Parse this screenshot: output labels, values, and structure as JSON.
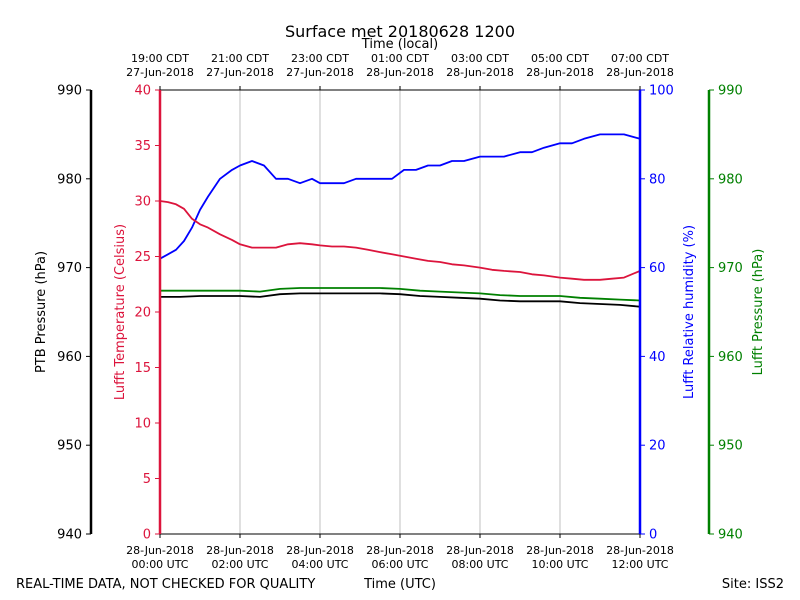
{
  "chart_data": {
    "type": "line",
    "title": "Surface met 20180628 1200",
    "top_axis_label": "Time (local)",
    "xlabel": "Time (UTC)",
    "footer_left": "REAL-TIME DATA, NOT CHECKED FOR QUALITY",
    "footer_right": "Site: ISS2",
    "x_range_hours": [
      0,
      12
    ],
    "x_ticks": [
      {
        "hour": 0,
        "utc_date": "28-Jun-2018",
        "utc_time": "00:00 UTC",
        "local_time": "19:00 CDT",
        "local_date": "27-Jun-2018"
      },
      {
        "hour": 2,
        "utc_date": "28-Jun-2018",
        "utc_time": "02:00 UTC",
        "local_time": "21:00 CDT",
        "local_date": "27-Jun-2018"
      },
      {
        "hour": 4,
        "utc_date": "28-Jun-2018",
        "utc_time": "04:00 UTC",
        "local_time": "23:00 CDT",
        "local_date": "27-Jun-2018"
      },
      {
        "hour": 6,
        "utc_date": "28-Jun-2018",
        "utc_time": "06:00 UTC",
        "local_time": "01:00 CDT",
        "local_date": "28-Jun-2018"
      },
      {
        "hour": 8,
        "utc_date": "28-Jun-2018",
        "utc_time": "08:00 UTC",
        "local_time": "03:00 CDT",
        "local_date": "28-Jun-2018"
      },
      {
        "hour": 10,
        "utc_date": "28-Jun-2018",
        "utc_time": "10:00 UTC",
        "local_time": "05:00 CDT",
        "local_date": "28-Jun-2018"
      },
      {
        "hour": 12,
        "utc_date": "28-Jun-2018",
        "utc_time": "12:00 UTC",
        "local_time": "07:00 CDT",
        "local_date": "28-Jun-2018"
      }
    ],
    "axes": [
      {
        "id": "ptb",
        "label": "PTB Pressure (hPa)",
        "color": "#000000",
        "ylim": [
          940,
          990
        ],
        "ticks": [
          "940",
          "950",
          "960",
          "970",
          "980",
          "990"
        ]
      },
      {
        "id": "temp",
        "label": "Lufft Temperature (Celsius)",
        "color": "#dc143c",
        "ylim": [
          0,
          40
        ],
        "ticks": [
          "0",
          "5",
          "10",
          "15",
          "20",
          "25",
          "30",
          "35",
          "40"
        ]
      },
      {
        "id": "rh",
        "label": "Lufft Relative humidity (%)",
        "color": "#0000ff",
        "ylim": [
          0,
          100
        ],
        "ticks": [
          "0",
          "20",
          "40",
          "60",
          "80",
          "100"
        ]
      },
      {
        "id": "lufft_p",
        "label": "Lufft Pressure (hPa)",
        "color": "#008000",
        "ylim": [
          940,
          990
        ],
        "ticks": [
          "940",
          "950",
          "960",
          "970",
          "980",
          "990"
        ]
      }
    ],
    "series": [
      {
        "name": "Lufft Relative humidity",
        "axis": "rh",
        "color": "#0000ff",
        "x": [
          0,
          0.2,
          0.4,
          0.6,
          0.8,
          1.0,
          1.2,
          1.5,
          1.8,
          2.0,
          2.3,
          2.6,
          2.9,
          3.2,
          3.5,
          3.8,
          4.0,
          4.3,
          4.6,
          4.9,
          5.2,
          5.5,
          5.8,
          6.1,
          6.4,
          6.7,
          7.0,
          7.3,
          7.6,
          8.0,
          8.3,
          8.6,
          9.0,
          9.3,
          9.6,
          10.0,
          10.3,
          10.6,
          11.0,
          11.3,
          11.6,
          12.0
        ],
        "values": [
          62,
          63,
          64,
          66,
          69,
          73,
          76,
          80,
          82,
          83,
          84,
          83,
          80,
          80,
          79,
          80,
          79,
          79,
          79,
          80,
          80,
          80,
          80,
          82,
          82,
          83,
          83,
          84,
          84,
          85,
          85,
          85,
          86,
          86,
          87,
          88,
          88,
          89,
          90,
          90,
          90,
          89
        ]
      },
      {
        "name": "Lufft Temperature",
        "axis": "temp",
        "color": "#dc143c",
        "x": [
          0,
          0.2,
          0.4,
          0.6,
          0.8,
          1.0,
          1.2,
          1.5,
          1.8,
          2.0,
          2.3,
          2.6,
          2.9,
          3.2,
          3.5,
          3.8,
          4.0,
          4.3,
          4.6,
          4.9,
          5.2,
          5.5,
          5.8,
          6.1,
          6.4,
          6.7,
          7.0,
          7.3,
          7.6,
          8.0,
          8.3,
          8.6,
          9.0,
          9.3,
          9.6,
          10.0,
          10.3,
          10.6,
          11.0,
          11.3,
          11.6,
          12.0
        ],
        "values": [
          30.0,
          29.9,
          29.7,
          29.3,
          28.4,
          27.9,
          27.6,
          27.0,
          26.5,
          26.1,
          25.8,
          25.8,
          25.8,
          26.1,
          26.2,
          26.1,
          26.0,
          25.9,
          25.9,
          25.8,
          25.6,
          25.4,
          25.2,
          25.0,
          24.8,
          24.6,
          24.5,
          24.3,
          24.2,
          24.0,
          23.8,
          23.7,
          23.6,
          23.4,
          23.3,
          23.1,
          23.0,
          22.9,
          22.9,
          23.0,
          23.1,
          23.7
        ]
      },
      {
        "name": "Lufft Pressure",
        "axis": "lufft_p",
        "color": "#008000",
        "x": [
          0,
          0.5,
          1.0,
          1.5,
          2.0,
          2.5,
          3.0,
          3.5,
          4.0,
          4.5,
          5.0,
          5.5,
          6.0,
          6.5,
          7.0,
          7.5,
          8.0,
          8.5,
          9.0,
          9.5,
          10.0,
          10.5,
          11.0,
          11.5,
          12.0
        ],
        "values": [
          967.4,
          967.4,
          967.4,
          967.4,
          967.4,
          967.3,
          967.6,
          967.7,
          967.7,
          967.7,
          967.7,
          967.7,
          967.6,
          967.4,
          967.3,
          967.2,
          967.1,
          966.9,
          966.8,
          966.8,
          966.8,
          966.6,
          966.5,
          966.4,
          966.3
        ]
      },
      {
        "name": "PTB Pressure",
        "axis": "ptb",
        "color": "#000000",
        "x": [
          0,
          0.5,
          1.0,
          1.5,
          2.0,
          2.5,
          3.0,
          3.5,
          4.0,
          4.5,
          5.0,
          5.5,
          6.0,
          6.5,
          7.0,
          7.5,
          8.0,
          8.5,
          9.0,
          9.5,
          10.0,
          10.5,
          11.0,
          11.5,
          12.0
        ],
        "values": [
          966.7,
          966.7,
          966.8,
          966.8,
          966.8,
          966.7,
          967.0,
          967.1,
          967.1,
          967.1,
          967.1,
          967.1,
          967.0,
          966.8,
          966.7,
          966.6,
          966.5,
          966.3,
          966.2,
          966.2,
          966.2,
          966.0,
          965.9,
          965.8,
          965.6
        ]
      }
    ]
  }
}
